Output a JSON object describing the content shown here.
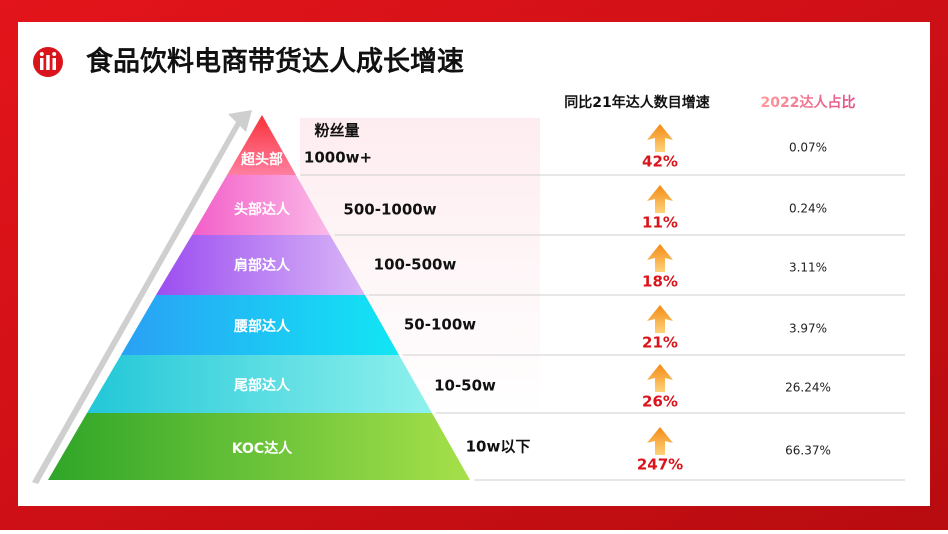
{
  "header": {
    "title": "食品饮料电商带货达人成长增速"
  },
  "columns": {
    "fans": "粉丝量",
    "growth": "同比21年达人数目增速",
    "share": "2022达人占比"
  },
  "rows": [
    {
      "tier": "超头部",
      "fans": "1000w+",
      "growth": "42%",
      "share": "0.07%"
    },
    {
      "tier": "头部达人",
      "fans": "500-1000w",
      "growth": "11%",
      "share": "0.24%"
    },
    {
      "tier": "肩部达人",
      "fans": "100-500w",
      "growth": "18%",
      "share": "3.11%"
    },
    {
      "tier": "腰部达人",
      "fans": "50-100w",
      "growth": "21%",
      "share": "3.97%"
    },
    {
      "tier": "尾部达人",
      "fans": "10-50w",
      "growth": "26%",
      "share": "26.24%"
    },
    {
      "tier": "KOC达人",
      "fans": "10w以下",
      "growth": "247%",
      "share": "66.37%"
    }
  ]
}
